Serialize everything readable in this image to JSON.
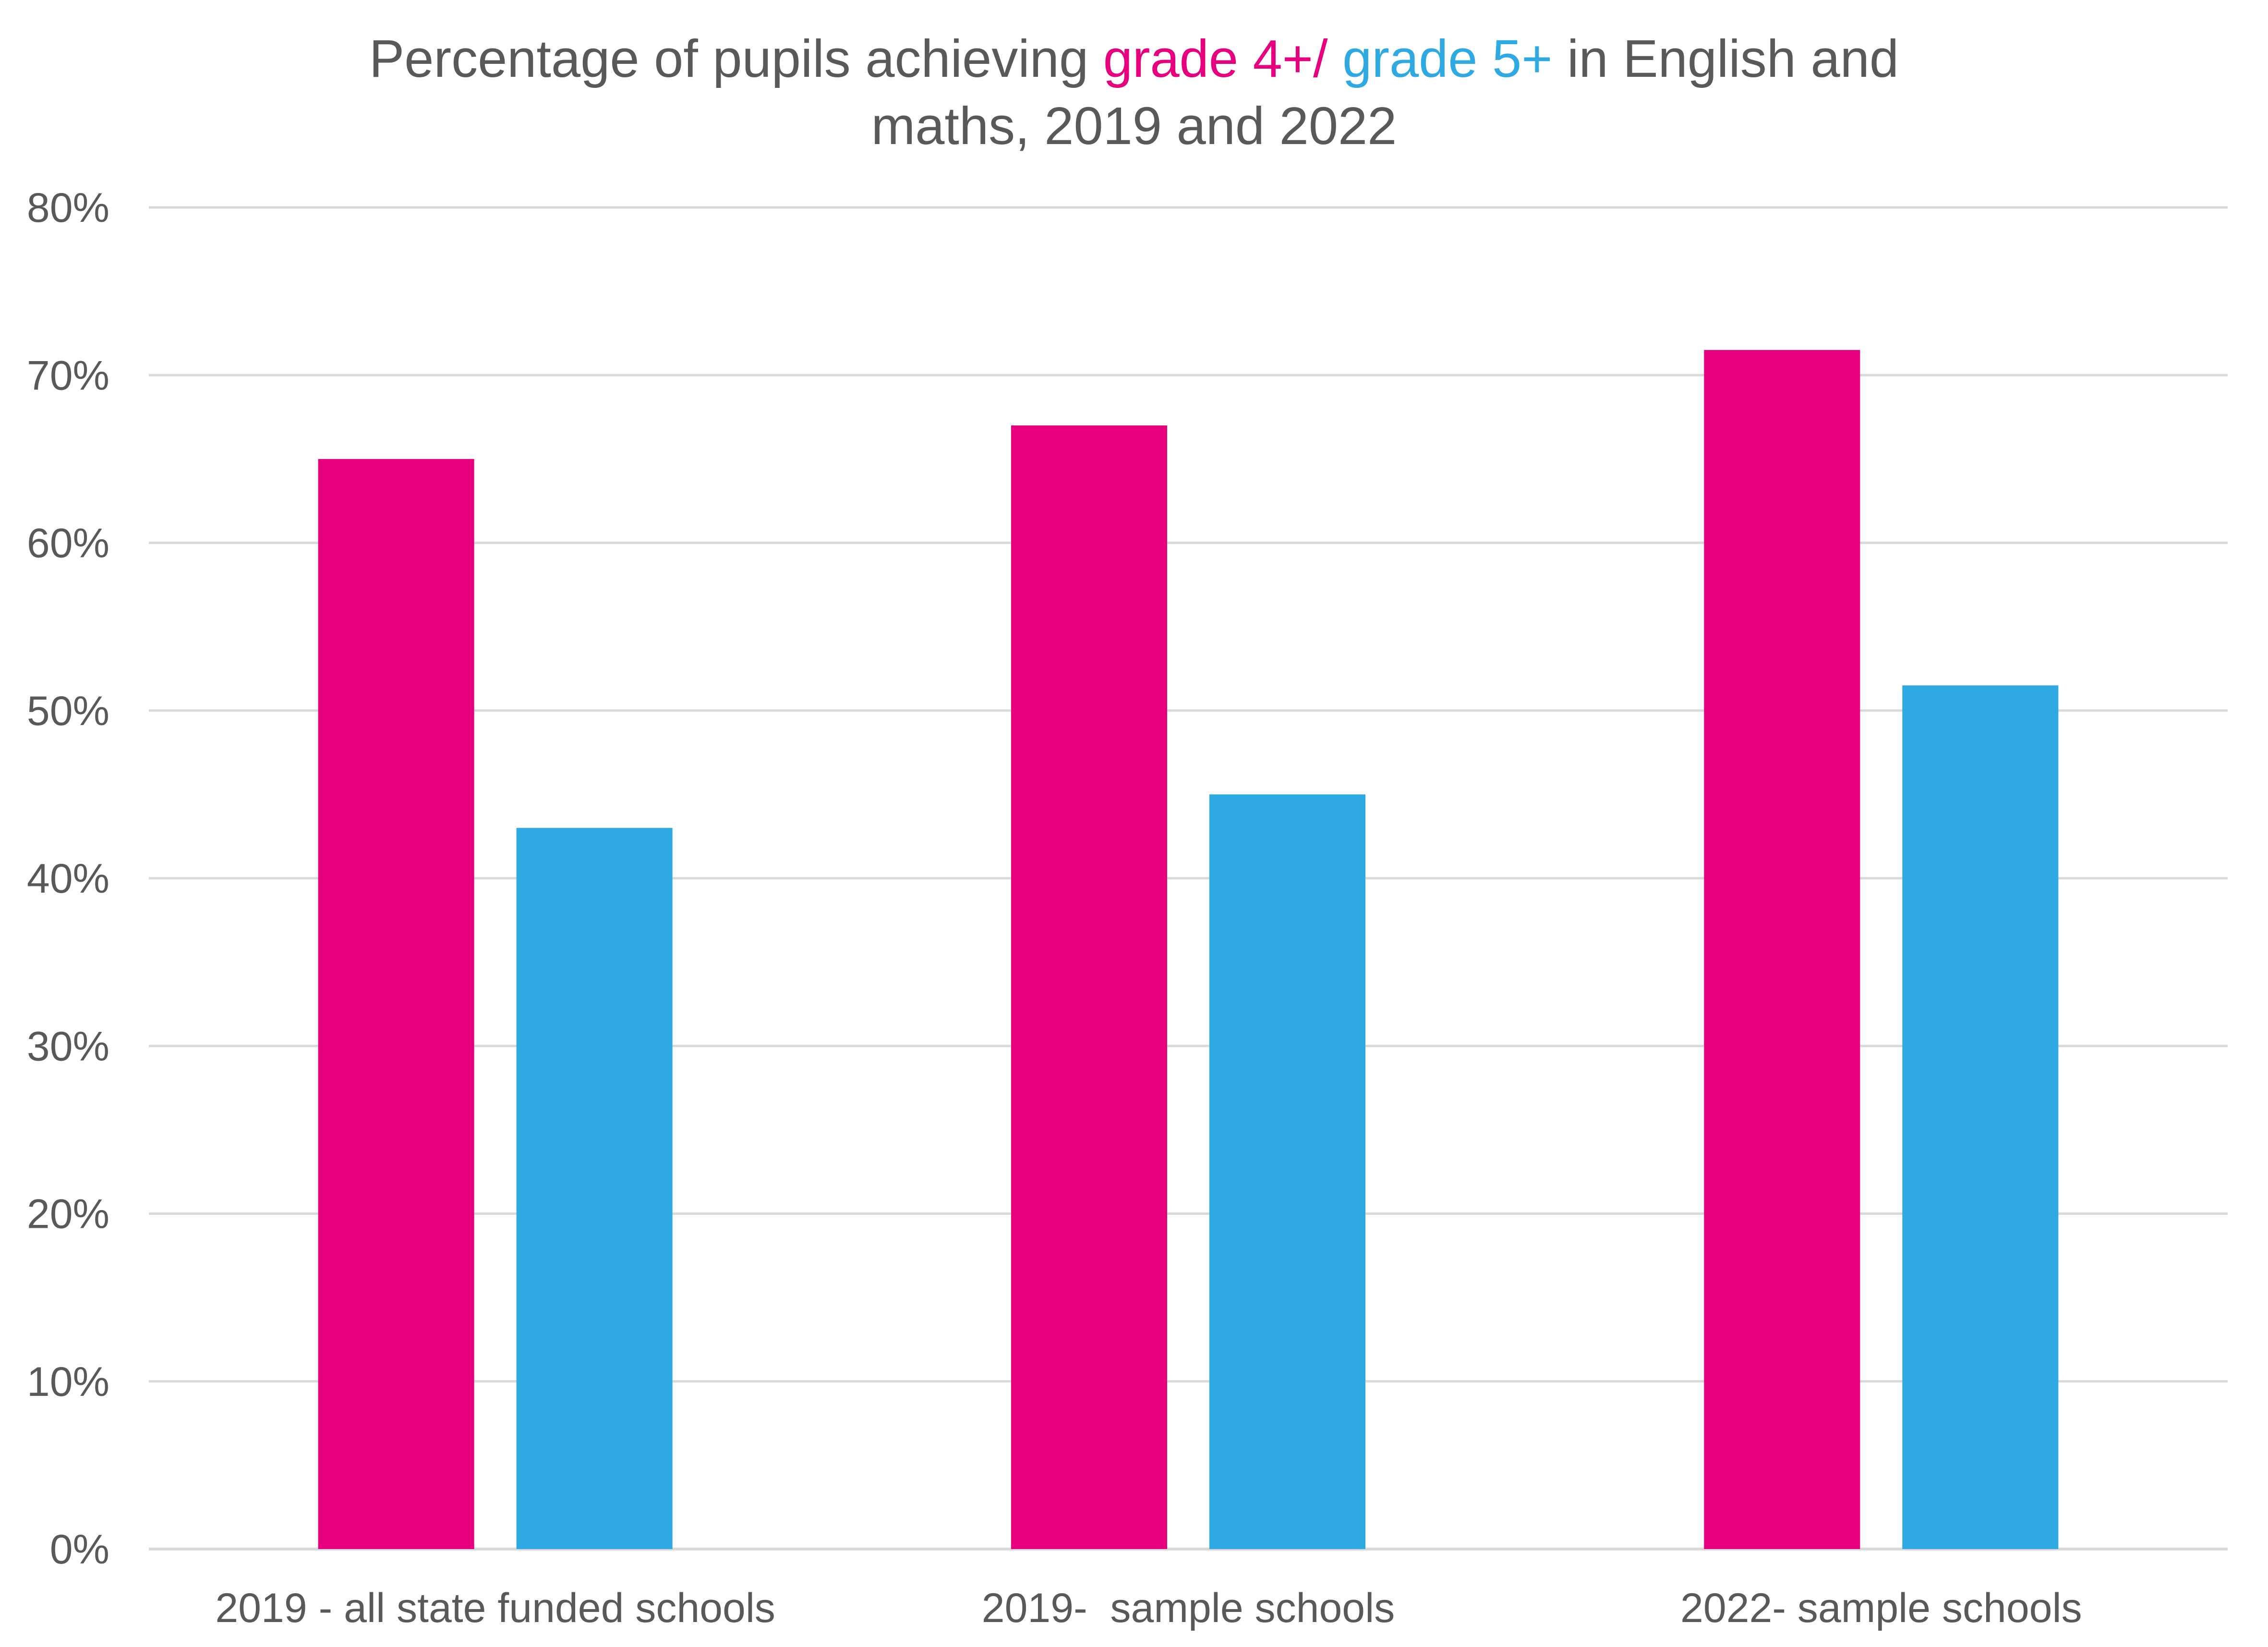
{
  "chart_data": {
    "type": "bar",
    "title": {
      "line1": [
        {
          "text": "Percentage of pupils achieving ",
          "color": "#595959"
        },
        {
          "text": "grade 4+/",
          "color": "#E6007E"
        },
        {
          "text": " ",
          "color": "#595959"
        },
        {
          "text": "grade 5+",
          "color": "#2EA9E1"
        },
        {
          "text": " in English and",
          "color": "#595959"
        }
      ],
      "line2": "maths, 2019 and 2022"
    },
    "categories": [
      "2019 - all state funded schools",
      "2019-  sample schools",
      "2022- sample schools"
    ],
    "series": [
      {
        "name": "grade 4+",
        "color": "#E6007E",
        "values": [
          65,
          67,
          71.5
        ]
      },
      {
        "name": "grade 5+",
        "color": "#2EA9E1",
        "values": [
          43,
          45,
          51.5
        ]
      }
    ],
    "ylim": [
      0,
      80
    ],
    "yticks": [
      0,
      10,
      20,
      30,
      40,
      50,
      60,
      70,
      80
    ],
    "ytick_labels": [
      "0%",
      "10%",
      "20%",
      "30%",
      "40%",
      "50%",
      "60%",
      "70%",
      "80%"
    ],
    "xlabel": "",
    "ylabel": "",
    "grid": true,
    "legend": "none"
  }
}
